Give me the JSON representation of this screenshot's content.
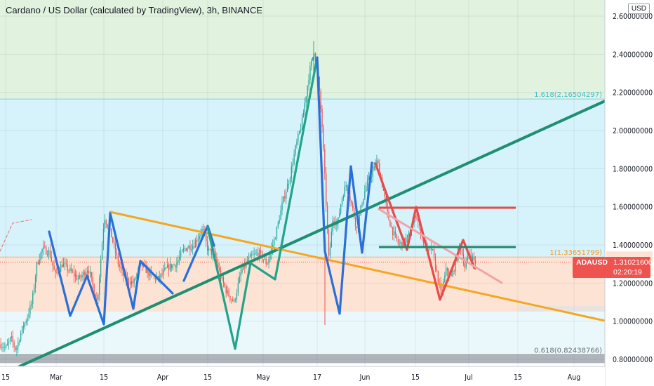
{
  "header": {
    "title": "Cardano / US Dollar (calculated by TradingView), 3h, BINANCE",
    "currency": "USD"
  },
  "colors": {
    "up": "#26a69a",
    "down": "#ef5350",
    "zone_green": "#e1f2de",
    "zone_blue": "#d6f2fa",
    "zone_orange": "#fde3d3",
    "zone_gray": "#b0b4bb",
    "trend_teal": "#1e8f72",
    "trend_orange": "#f5a623",
    "wave_blue": "#2a6fd8",
    "wave_teal": "#22a38a",
    "wave_red": "#e74b4b",
    "level_green": "#1f8a6a",
    "level_red": "#e84a44",
    "fib_text_teal": "#41bcd0",
    "fib_text_orange": "#ef9a2c"
  },
  "chart_data": {
    "type": "candlestick",
    "symbol": "ADAUSD",
    "timeframe": "3h",
    "exchange": "BINANCE",
    "ylim": [
      0.77,
      2.69
    ],
    "x_ticks": [
      "15",
      "Mar",
      "15",
      "Apr",
      "15",
      "May",
      "17",
      "Jun",
      "15",
      "Jul",
      "15",
      "Aug"
    ],
    "y_ticks": [
      "2.60000000",
      "2.40000000",
      "2.20000000",
      "2.00000000",
      "1.80000000",
      "1.60000000",
      "1.40000000",
      "1.20000000",
      "1.00000000",
      "0.80000000"
    ],
    "y_tick_values": [
      2.6,
      2.4,
      2.2,
      2.0,
      1.8,
      1.6,
      1.4,
      1.2,
      1.0,
      0.8
    ],
    "current_price": {
      "symbol": "ADAUSD",
      "value": "1.31021606",
      "countdown": "02:20:19",
      "numeric": 1.31021606
    },
    "fib_levels": [
      {
        "label": "1.618(2.16504297)",
        "value": 2.16504297,
        "color": "#41bcd0"
      },
      {
        "label": "1(1.33651799)",
        "value": 1.33651799,
        "color": "#ef9a2c"
      },
      {
        "label": "0.618(0.82438766)",
        "value": 0.82438766,
        "color": "#6b6f79"
      }
    ],
    "zones": [
      {
        "name": "green",
        "from": 2.16504297,
        "to": 2.69
      },
      {
        "name": "blue",
        "from": 1.33651799,
        "to": 2.16504297
      },
      {
        "name": "orange",
        "from": 1.05,
        "to": 1.33651799
      },
      {
        "name": "light-blue",
        "from": 0.82438766,
        "to": 1.05
      },
      {
        "name": "gray",
        "from": 0.78,
        "to": 0.82438766
      }
    ],
    "price_path_x": [
      0,
      8,
      15,
      22,
      30,
      38,
      45,
      52,
      60,
      70,
      78,
      88,
      100,
      112,
      125,
      138,
      148,
      158,
      168,
      178,
      190,
      200,
      212,
      225,
      238,
      250,
      262,
      275,
      288,
      296,
      305,
      315,
      323,
      333,
      343,
      355,
      368,
      380,
      392,
      402,
      412,
      420,
      430,
      440,
      447,
      452,
      458,
      463,
      468,
      474,
      480,
      486,
      493,
      500,
      508,
      515,
      522,
      530,
      537,
      545,
      552,
      560,
      568,
      575,
      583,
      592,
      600,
      608,
      615,
      622,
      628,
      636,
      642,
      648,
      655,
      662,
      668,
      676
    ],
    "price_path_y": [
      0.88,
      0.86,
      0.91,
      0.85,
      0.95,
      1.02,
      1.1,
      1.3,
      1.38,
      1.36,
      1.24,
      1.3,
      1.26,
      1.22,
      1.28,
      1.1,
      1.55,
      1.45,
      1.3,
      1.22,
      1.2,
      1.3,
      1.25,
      1.22,
      1.28,
      1.3,
      1.38,
      1.4,
      1.48,
      1.37,
      1.35,
      1.22,
      1.15,
      1.1,
      1.26,
      1.33,
      1.36,
      1.3,
      1.45,
      1.62,
      1.75,
      1.9,
      2.05,
      2.3,
      2.42,
      2.3,
      2.05,
      1.7,
      1.32,
      1.55,
      1.5,
      1.64,
      1.72,
      1.62,
      1.48,
      1.62,
      1.72,
      1.78,
      1.84,
      1.7,
      1.55,
      1.46,
      1.4,
      1.42,
      1.45,
      1.57,
      1.45,
      1.37,
      1.38,
      1.25,
      1.14,
      1.28,
      1.22,
      1.3,
      1.41,
      1.28,
      1.36,
      1.31
    ]
  }
}
